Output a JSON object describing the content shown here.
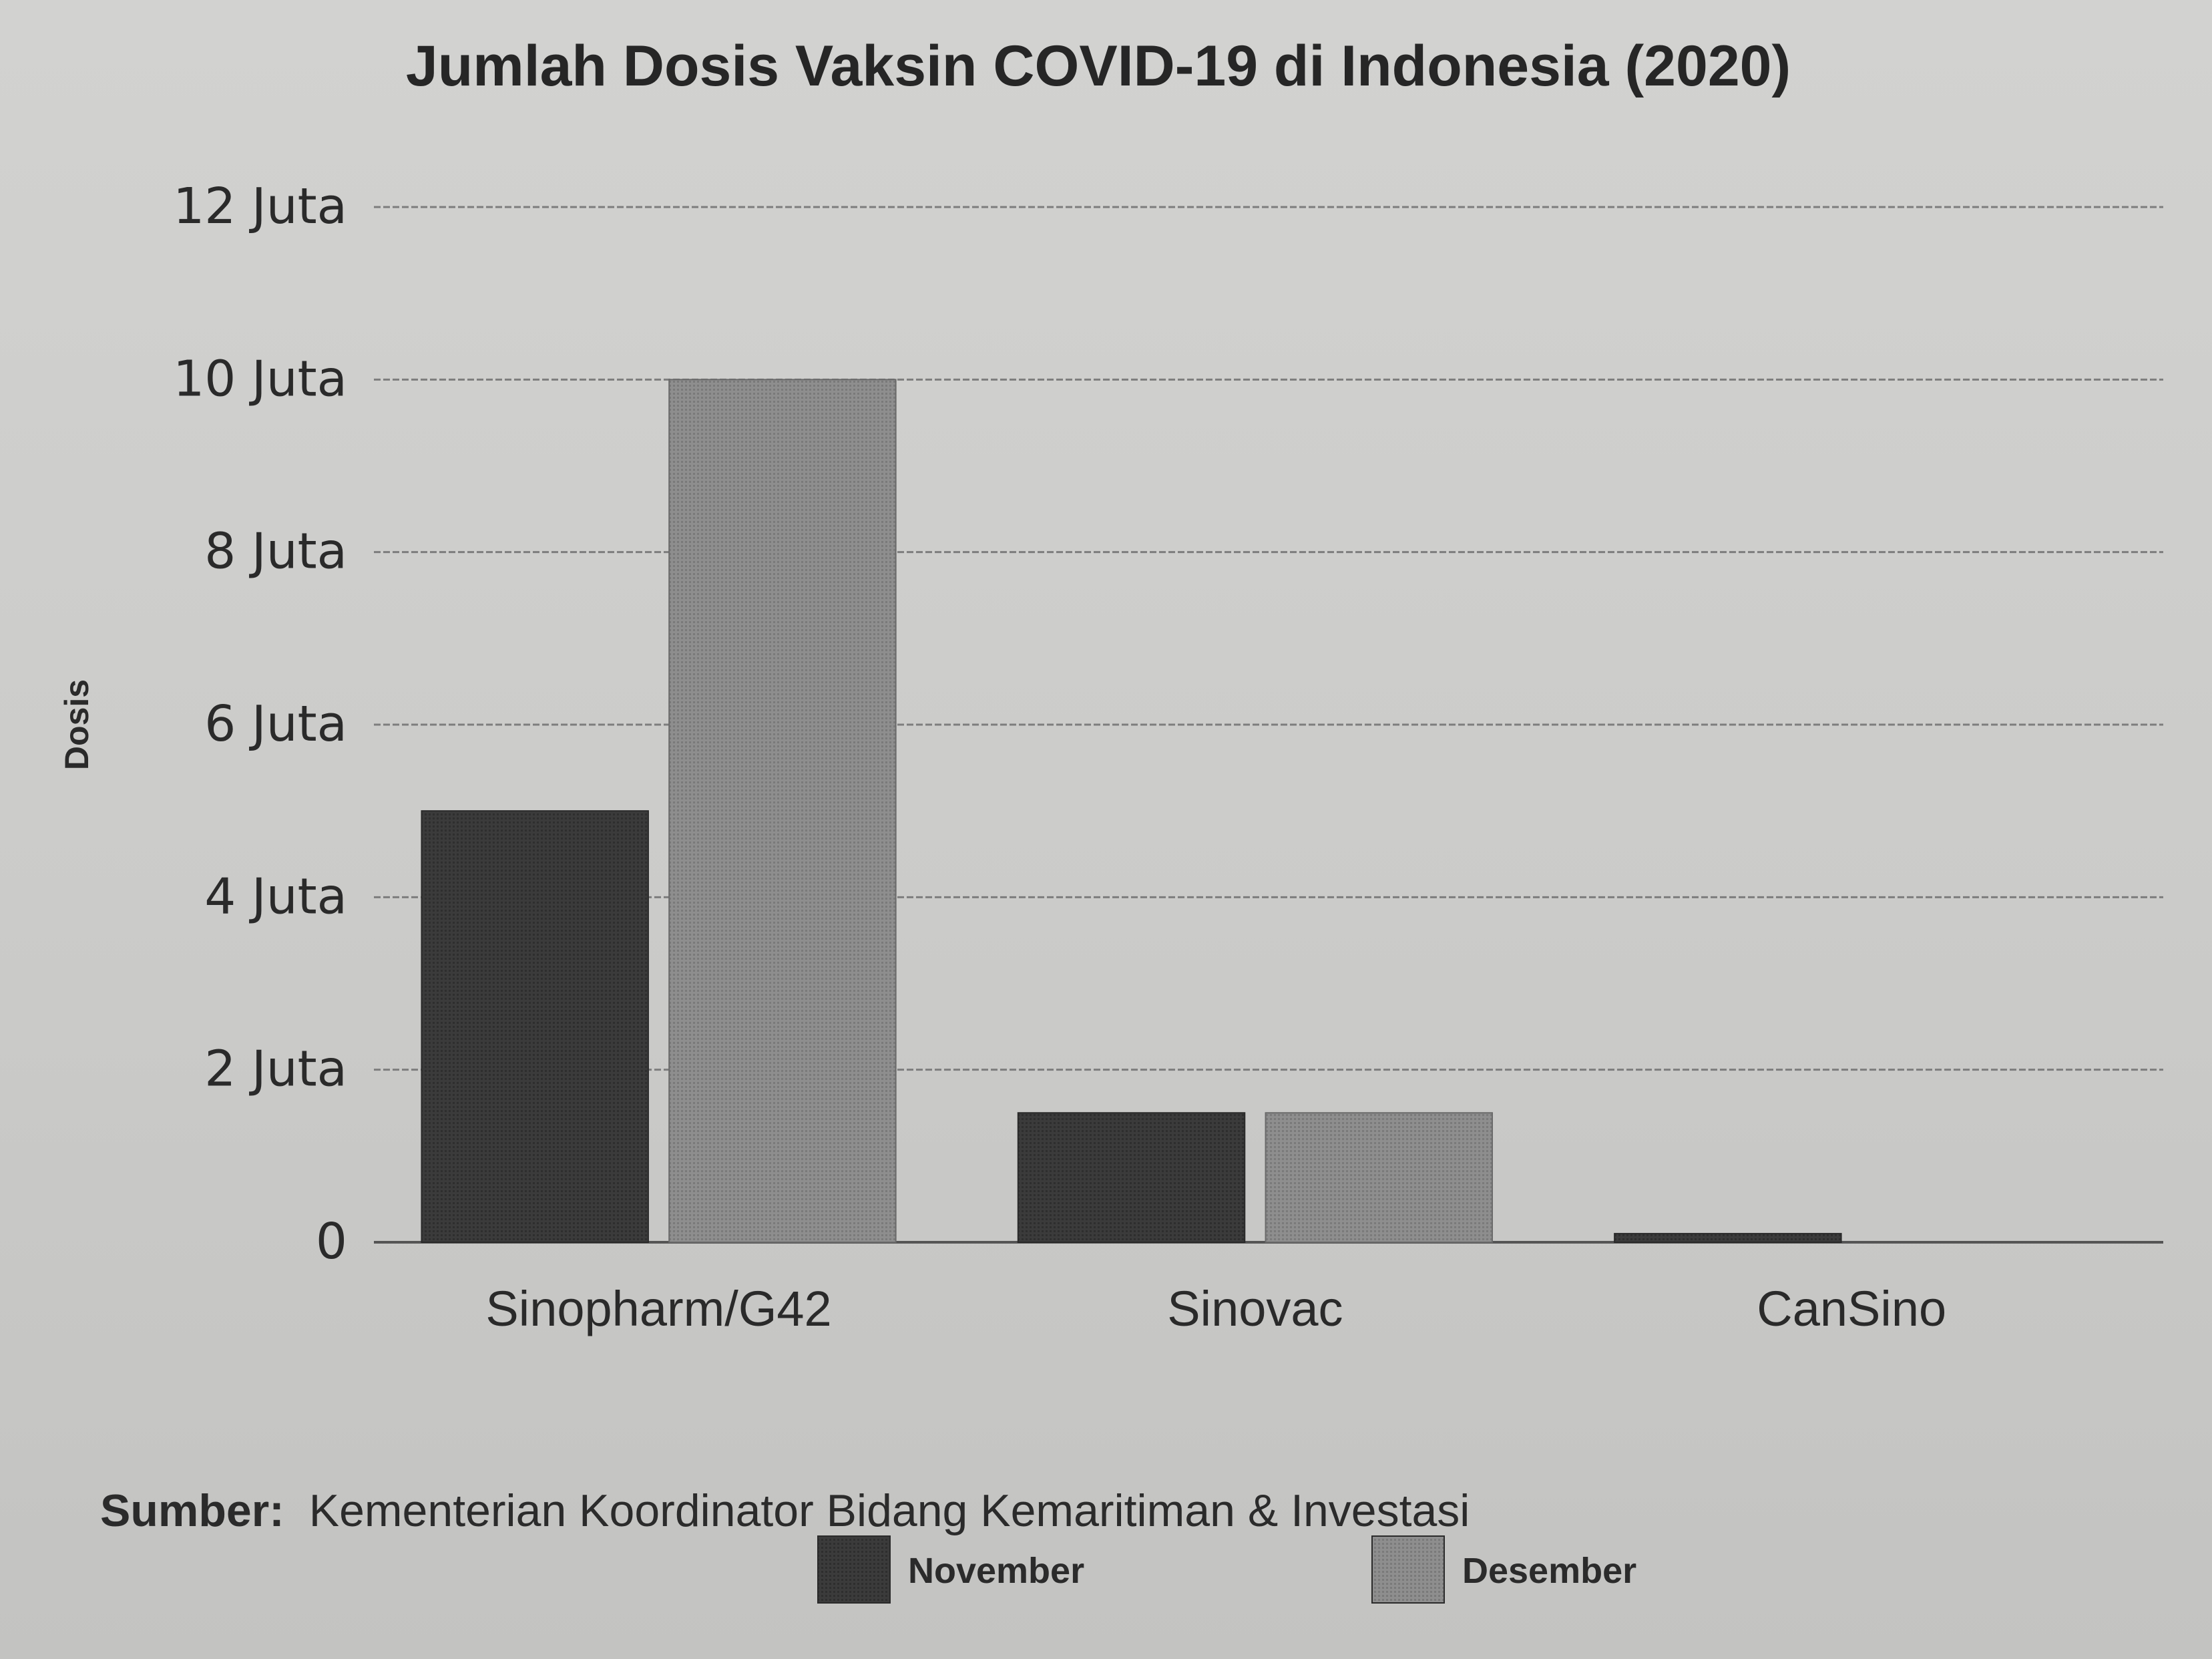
{
  "chart_data": {
    "type": "bar",
    "title": "Jumlah Dosis Vaksin COVID-19 di Indonesia (2020)",
    "ylabel": "Dosis",
    "xlabel": "",
    "categories": [
      "Sinopharm/G42",
      "Sinovac",
      "CanSino"
    ],
    "series": [
      {
        "name": "November",
        "values": [
          5.0,
          1.5,
          0.1
        ],
        "color": "#3d3d3d"
      },
      {
        "name": "Desember",
        "values": [
          10.0,
          1.5,
          0.0
        ],
        "color": "#8a8a8a"
      }
    ],
    "ylim": [
      0,
      12
    ],
    "yticks": [
      {
        "value": 0,
        "label": "0"
      },
      {
        "value": 2,
        "label": "2 Juta"
      },
      {
        "value": 4,
        "label": "4 Juta"
      },
      {
        "value": 6,
        "label": "6 Juta"
      },
      {
        "value": 8,
        "label": "8 Juta"
      },
      {
        "value": 10,
        "label": "10 Juta"
      },
      {
        "value": 12,
        "label": "12 Juta"
      }
    ],
    "grid": true,
    "legend_position": "bottom",
    "source": {
      "label": "Sumber:",
      "text": "Kementerian Koordinator Bidang Kemaritiman & Investasi"
    }
  }
}
